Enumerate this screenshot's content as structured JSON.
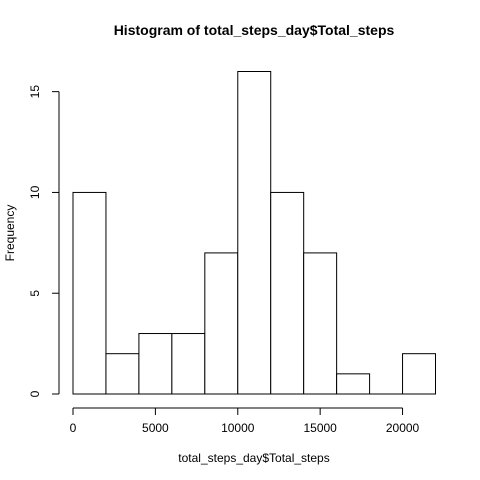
{
  "chart_data": {
    "type": "bar",
    "subtype": "histogram",
    "title": "Histogram of total_steps_day$Total_steps",
    "xlabel": "total_steps_day$Total_steps",
    "ylabel": "Frequency",
    "bins": [
      {
        "start": 0,
        "end": 2000,
        "count": 10
      },
      {
        "start": 2000,
        "end": 4000,
        "count": 2
      },
      {
        "start": 4000,
        "end": 6000,
        "count": 3
      },
      {
        "start": 6000,
        "end": 8000,
        "count": 3
      },
      {
        "start": 8000,
        "end": 10000,
        "count": 7
      },
      {
        "start": 10000,
        "end": 12000,
        "count": 16
      },
      {
        "start": 12000,
        "end": 14000,
        "count": 10
      },
      {
        "start": 14000,
        "end": 16000,
        "count": 7
      },
      {
        "start": 16000,
        "end": 18000,
        "count": 1
      },
      {
        "start": 18000,
        "end": 20000,
        "count": 0
      },
      {
        "start": 20000,
        "end": 22000,
        "count": 2
      }
    ],
    "xlim": [
      0,
      22000
    ],
    "ylim": [
      0,
      16
    ],
    "x_ticks": [
      0,
      5000,
      10000,
      15000,
      20000
    ],
    "y_ticks": [
      0,
      5,
      10,
      15
    ],
    "grid": false,
    "legend": "none"
  }
}
